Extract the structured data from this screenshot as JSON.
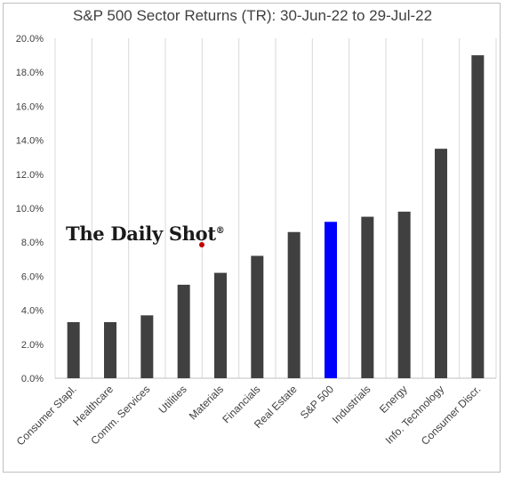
{
  "chart_data": {
    "type": "bar",
    "title": "S&P 500 Sector Returns (TR): 30-Jun-22 to 29-Jul-22",
    "categories": [
      "Consumer Stapl.",
      "Healthcare",
      "Comm. Services",
      "Utilities",
      "Materials",
      "Financials",
      "Real Estate",
      "S&P 500",
      "Industrials",
      "Energy",
      "Info. Technology",
      "Consumer Discr."
    ],
    "values": [
      3.3,
      3.3,
      3.7,
      5.5,
      6.2,
      7.2,
      8.6,
      9.2,
      9.5,
      9.8,
      13.5,
      19.0
    ],
    "highlight_category": "S&P 500",
    "ylim": [
      0,
      20
    ],
    "yticks": [
      "0.0%",
      "2.0%",
      "4.0%",
      "6.0%",
      "8.0%",
      "10.0%",
      "12.0%",
      "14.0%",
      "16.0%",
      "18.0%",
      "20.0%"
    ],
    "grid": "vertical",
    "colors": {
      "bar": "#404040",
      "highlight": "#0000ff"
    }
  },
  "watermark": {
    "text": "The Daily Shot",
    "mark": "®"
  }
}
